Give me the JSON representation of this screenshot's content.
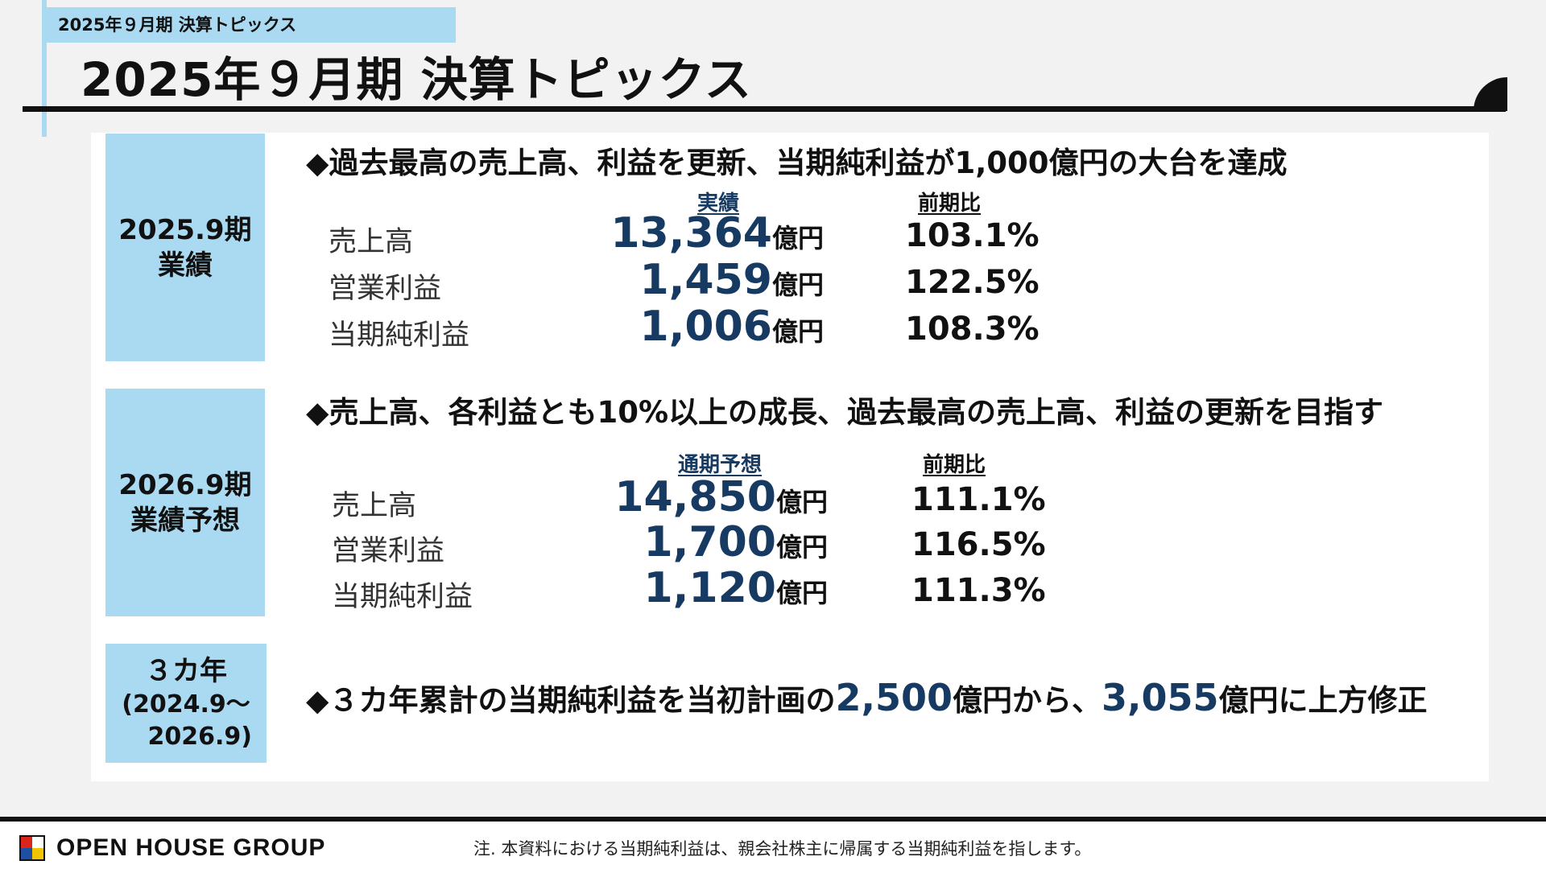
{
  "header": {
    "breadcrumb": "2025年９月期 決算トピックス",
    "title": "2025年９月期 決算トピックス"
  },
  "section_results": {
    "label_line1": "2025.9期",
    "label_line2": "業績",
    "headline": "◆過去最高の売上高、利益を更新、当期純利益が1,000億円の大台を達成",
    "col_value": "実績",
    "col_ratio": "前期比",
    "rows": [
      {
        "label": "売上高",
        "value": "13,364",
        "unit": "億円",
        "ratio": "103.1%"
      },
      {
        "label": "営業利益",
        "value": "1,459",
        "unit": "億円",
        "ratio": "122.5%"
      },
      {
        "label": "当期純利益",
        "value": "1,006",
        "unit": "億円",
        "ratio": "108.3%"
      }
    ]
  },
  "section_forecast": {
    "label_line1": "2026.9期",
    "label_line2": "業績予想",
    "headline": "◆売上高、各利益とも10%以上の成長、過去最高の売上高、利益の更新を目指す",
    "col_value": "通期予想",
    "col_ratio": "前期比",
    "rows": [
      {
        "label": "売上高",
        "value": "14,850",
        "unit": "億円",
        "ratio": "111.1%"
      },
      {
        "label": "営業利益",
        "value": "1,700",
        "unit": "億円",
        "ratio": "116.5%"
      },
      {
        "label": "当期純利益",
        "value": "1,120",
        "unit": "億円",
        "ratio": "111.3%"
      }
    ]
  },
  "section_three_year": {
    "label_line1": "３カ年",
    "label_line2": "(2024.9～",
    "label_line3": "2026.9)",
    "headline_part1": "◆３カ年累計の当期純利益を当初計画の",
    "num1": "2,500",
    "headline_part2": "億円から、",
    "num2": "3,055",
    "headline_part3": "億円に上方修正"
  },
  "footer": {
    "logo_text": "OPEN HOUSE GROUP",
    "note": "注. 本資料における当期純利益は、親会社株主に帰属する当期純利益を指します。"
  },
  "colors": {
    "accent_light_blue": "#aad9f2",
    "number_navy": "#173a63",
    "logo_red": "#d9251c",
    "logo_blue": "#1f4fa0",
    "logo_yellow": "#f3c400"
  }
}
